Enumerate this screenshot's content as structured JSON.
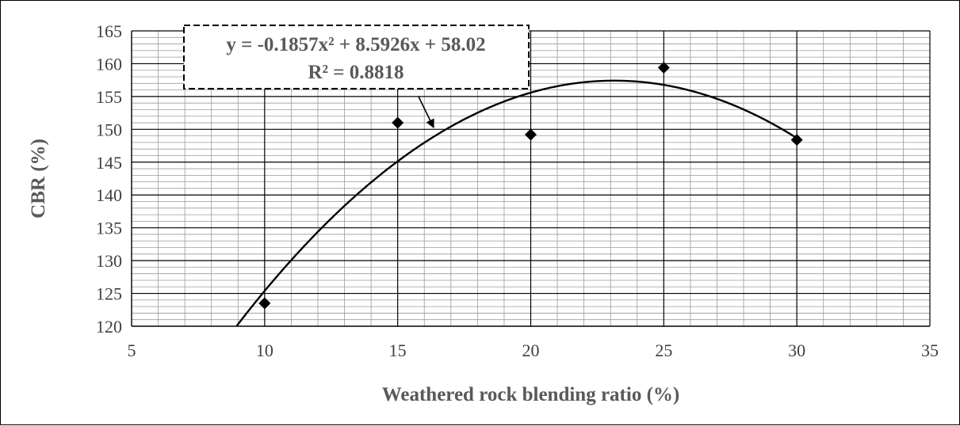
{
  "chart_data": {
    "type": "scatter",
    "title": "",
    "xlabel": "Weathered rock blending ratio (%)",
    "ylabel": "CBR (%)",
    "xlim": [
      5,
      35
    ],
    "ylim": [
      120,
      165
    ],
    "xticks": [
      "5",
      "10",
      "15",
      "20",
      "25",
      "30",
      "35"
    ],
    "yticks": [
      "120",
      "125",
      "130",
      "135",
      "140",
      "145",
      "150",
      "155",
      "160",
      "165"
    ],
    "grid": {
      "major": true,
      "minor": true
    },
    "marker": "diamond",
    "series": [
      {
        "x": [
          10,
          15,
          20,
          25,
          30
        ],
        "y": [
          123.5,
          151.0,
          149.2,
          159.4,
          148.4
        ]
      }
    ],
    "trendline": {
      "type": "polynomial",
      "order": 2,
      "coefficients": [
        -0.1857,
        8.5926,
        58.02
      ],
      "equation": "y = -0.1857x² + 8.5926x + 58.02",
      "r_squared_label": "R² = 0.8818"
    }
  }
}
